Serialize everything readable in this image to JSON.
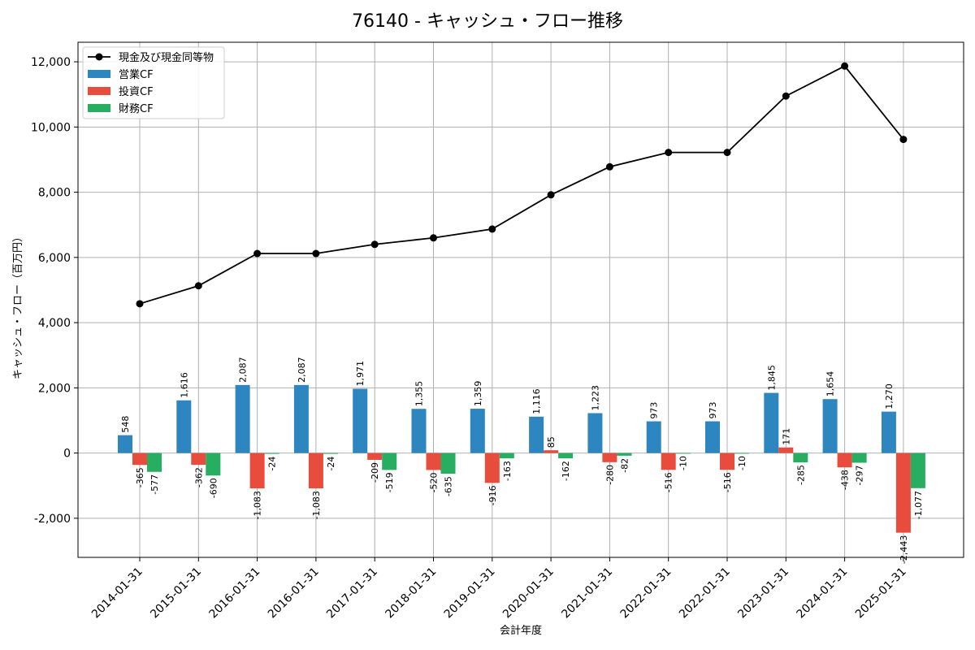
{
  "chart_data": {
    "type": "bar",
    "title": "76140 - キャッシュ・フロー推移",
    "xlabel": "会計年度",
    "ylabel": "キャッシュ・フロー（百万円）",
    "ylim": [
      -3200,
      12600
    ],
    "yticks": [
      -2000,
      0,
      2000,
      4000,
      6000,
      8000,
      10000,
      12000
    ],
    "ytick_labels": [
      "-2,000",
      "0",
      "2,000",
      "4,000",
      "6,000",
      "8,000",
      "10,000",
      "12,000"
    ],
    "grid": true,
    "legend_position": "top-left",
    "categories": [
      "2014-01-31",
      "2015-01-31",
      "2016-01-31",
      "2016-01-31",
      "2017-01-31",
      "2018-01-31",
      "2019-01-31",
      "2020-01-31",
      "2021-01-31",
      "2022-01-31",
      "2022-01-31",
      "2023-01-31",
      "2024-01-31",
      "2025-01-31"
    ],
    "series": [
      {
        "name": "営業CF",
        "kind": "bar",
        "color": "#2e86c1",
        "values": [
          548,
          1616,
          2087,
          2087,
          1971,
          1355,
          1359,
          1116,
          1223,
          973,
          973,
          1845,
          1654,
          1270
        ],
        "labels": [
          "548",
          "1,616",
          "2,087",
          "2,087",
          "1,971",
          "1,355",
          "1,359",
          "1,116",
          "1,223",
          "973",
          "973",
          "1,845",
          "1,654",
          "1,270"
        ]
      },
      {
        "name": "投資CF",
        "kind": "bar",
        "color": "#e74c3c",
        "values": [
          -365,
          -362,
          -1083,
          -1083,
          -209,
          -520,
          -916,
          85,
          -280,
          -516,
          -516,
          171,
          -438,
          -2443
        ],
        "labels": [
          "-365",
          "-362",
          "-1,083",
          "-1,083",
          "-209",
          "-520",
          "-916",
          "85",
          "-280",
          "-516",
          "-516",
          "171",
          "-438",
          "-2,443"
        ]
      },
      {
        "name": "財務CF",
        "kind": "bar",
        "color": "#27ae60",
        "values": [
          -577,
          -690,
          -24,
          -24,
          -519,
          -635,
          -163,
          -162,
          -82,
          -10,
          -10,
          -285,
          -297,
          -1077
        ],
        "labels": [
          "-577",
          "-690",
          "-24",
          "-24",
          "-519",
          "-635",
          "-163",
          "-162",
          "-82",
          "-10",
          "-10",
          "-285",
          "-297",
          "-1,077"
        ]
      },
      {
        "name": "現金及び現金同等物",
        "kind": "line",
        "color": "#000000",
        "values": [
          4580,
          5130,
          6120,
          6120,
          6400,
          6600,
          6870,
          7920,
          8780,
          9220,
          9220,
          10950,
          11870,
          9620
        ]
      }
    ]
  }
}
